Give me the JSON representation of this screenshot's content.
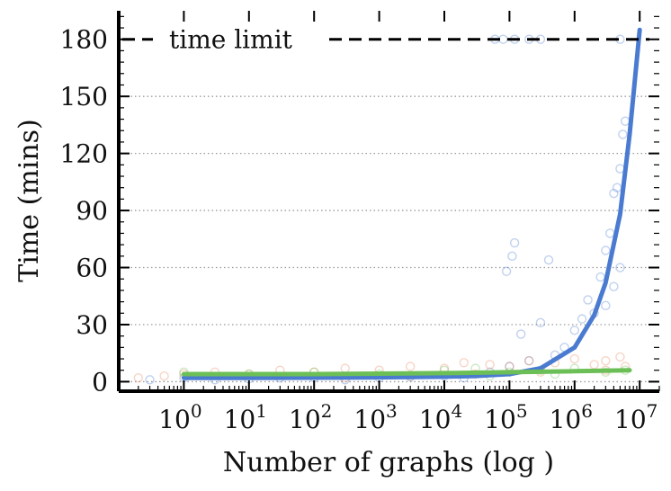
{
  "chart_data": {
    "type": "scatter",
    "title": "",
    "xlabel": "Number of graphs (log )",
    "ylabel": "Time (mins)",
    "xscale": "log",
    "xlim": [
      0.1,
      20000000
    ],
    "ylim": [
      -5,
      195
    ],
    "x_ticks": [
      {
        "value": 1,
        "base": "10",
        "exp": "0"
      },
      {
        "value": 10,
        "base": "10",
        "exp": "1"
      },
      {
        "value": 100,
        "base": "10",
        "exp": "2"
      },
      {
        "value": 1000,
        "base": "10",
        "exp": "3"
      },
      {
        "value": 10000,
        "base": "10",
        "exp": "4"
      },
      {
        "value": 100000,
        "base": "10",
        "exp": "5"
      },
      {
        "value": 1000000,
        "base": "10",
        "exp": "6"
      },
      {
        "value": 10000000,
        "base": "10",
        "exp": "7"
      }
    ],
    "y_ticks": [
      0,
      30,
      60,
      90,
      120,
      150,
      180
    ],
    "y_tick_labels": [
      "0",
      "30",
      "60",
      "90",
      "120",
      "150",
      "180"
    ],
    "grid": "horizontal dotted",
    "time_limit": {
      "value": 180,
      "label": "time limit"
    },
    "series": [
      {
        "color": "#4a7bd0",
        "curve": [
          [
            1,
            2
          ],
          [
            10,
            2
          ],
          [
            100,
            2.1
          ],
          [
            1000,
            2.3
          ],
          [
            10000,
            2.6
          ],
          [
            30000,
            3
          ],
          [
            100000,
            4
          ],
          [
            300000,
            7
          ],
          [
            1000000,
            18
          ],
          [
            2000000,
            35
          ],
          [
            3000000,
            52
          ],
          [
            5000000,
            88
          ],
          [
            7000000,
            130
          ],
          [
            10000000,
            185
          ]
        ],
        "points": [
          [
            0.3,
            1
          ],
          [
            1,
            2
          ],
          [
            3,
            1
          ],
          [
            10,
            1.5
          ],
          [
            30,
            2
          ],
          [
            100,
            2
          ],
          [
            300,
            1
          ],
          [
            1000,
            2
          ],
          [
            3000,
            2.5
          ],
          [
            10000,
            3
          ],
          [
            20000,
            2
          ],
          [
            50000,
            5
          ],
          [
            100000,
            8
          ],
          [
            120000,
            73
          ],
          [
            110000,
            66
          ],
          [
            90000,
            58
          ],
          [
            150000,
            25
          ],
          [
            200000,
            11
          ],
          [
            300000,
            31
          ],
          [
            400000,
            64
          ],
          [
            500000,
            14
          ],
          [
            700000,
            18
          ],
          [
            1000000,
            27
          ],
          [
            1300000,
            33
          ],
          [
            1600000,
            43
          ],
          [
            2000000,
            36
          ],
          [
            2500000,
            55
          ],
          [
            3000000,
            69
          ],
          [
            3500000,
            78
          ],
          [
            4000000,
            99
          ],
          [
            4500000,
            102
          ],
          [
            5000000,
            112
          ],
          [
            5500000,
            130
          ],
          [
            6000000,
            137
          ],
          [
            3000000,
            40
          ],
          [
            4000000,
            50
          ],
          [
            5000000,
            60
          ],
          [
            60000,
            180
          ],
          [
            80000,
            180
          ],
          [
            120000,
            180
          ],
          [
            200000,
            180
          ],
          [
            300000,
            180
          ],
          [
            5000000,
            180
          ]
        ]
      },
      {
        "color": "#e8875c",
        "points": [
          [
            0.2,
            2
          ],
          [
            0.5,
            3
          ],
          [
            1,
            4
          ],
          [
            3,
            5
          ],
          [
            10,
            4
          ],
          [
            30,
            6
          ],
          [
            100,
            5
          ],
          [
            300,
            7
          ],
          [
            1000,
            6
          ],
          [
            3000,
            8
          ],
          [
            10000,
            7
          ],
          [
            20000,
            10
          ],
          [
            50000,
            9
          ],
          [
            100000,
            8
          ],
          [
            200000,
            11
          ],
          [
            500000,
            10
          ],
          [
            1000000,
            12
          ],
          [
            2000000,
            9
          ],
          [
            3000000,
            11
          ],
          [
            5000000,
            13
          ],
          [
            6000000,
            8
          ],
          [
            300,
            2
          ],
          [
            3000,
            3
          ],
          [
            30000,
            4
          ],
          [
            300000,
            5
          ],
          [
            3000000,
            6
          ]
        ]
      },
      {
        "color": "#6cbf57",
        "curve": [
          [
            1,
            4
          ],
          [
            10,
            4
          ],
          [
            100,
            4
          ],
          [
            1000,
            4.2
          ],
          [
            10000,
            4.5
          ],
          [
            100000,
            5
          ],
          [
            1000000,
            5.5
          ],
          [
            7000000,
            6
          ]
        ],
        "points": [
          [
            1,
            5
          ],
          [
            10,
            4
          ],
          [
            100,
            5
          ],
          [
            1000,
            4
          ],
          [
            10000,
            6
          ],
          [
            30000,
            7
          ],
          [
            100000,
            5
          ],
          [
            300000,
            6
          ],
          [
            1000000,
            7
          ],
          [
            3000000,
            5
          ],
          [
            6000000,
            6
          ],
          [
            50000,
            3
          ],
          [
            500000,
            4
          ]
        ]
      }
    ]
  }
}
